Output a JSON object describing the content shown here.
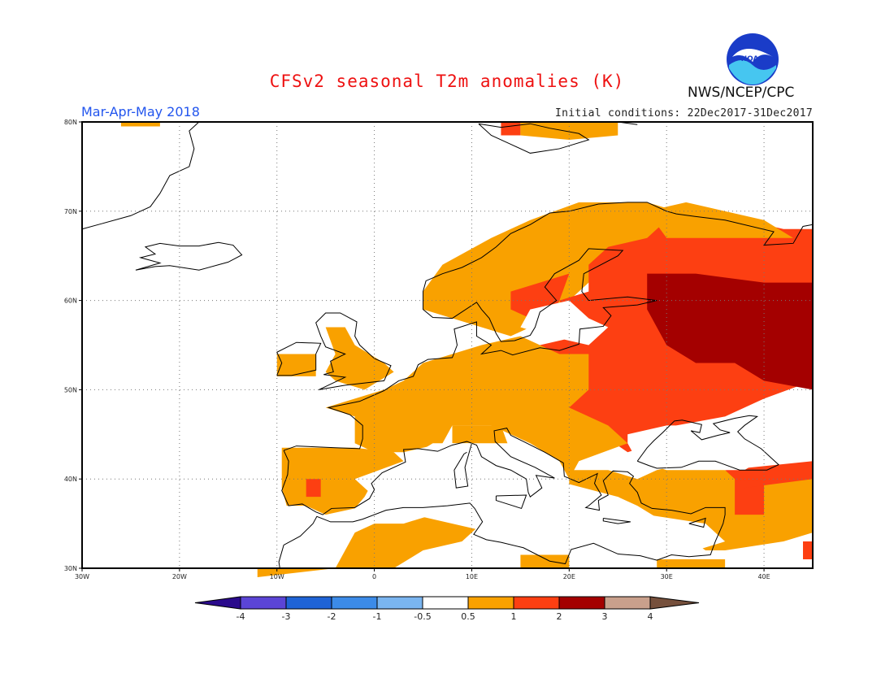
{
  "title": "CFSv2 seasonal T2m anomalies (K)",
  "agency": "NWS/NCEP/CPC",
  "logo_text": "NOAA",
  "period": "Mar-Apr-May 2018",
  "initial_conditions": "Initial conditions: 22Dec2017-31Dec2017",
  "map": {
    "projection": "lat-lon",
    "lon_range": [
      -30,
      45
    ],
    "lat_range": [
      30,
      80
    ],
    "grid": true,
    "lon_ticks": [
      {
        "value": -30,
        "label": "30W"
      },
      {
        "value": -20,
        "label": "20W"
      },
      {
        "value": -10,
        "label": "10W"
      },
      {
        "value": 0,
        "label": "0"
      },
      {
        "value": 10,
        "label": "10E"
      },
      {
        "value": 20,
        "label": "20E"
      },
      {
        "value": 30,
        "label": "30E"
      },
      {
        "value": 40,
        "label": "40E"
      }
    ],
    "lat_ticks": [
      {
        "value": 30,
        "label": "30N"
      },
      {
        "value": 40,
        "label": "40N"
      },
      {
        "value": 50,
        "label": "50N"
      },
      {
        "value": 60,
        "label": "60N"
      },
      {
        "value": 70,
        "label": "70N"
      },
      {
        "value": 80,
        "label": "80N"
      }
    ]
  },
  "colorbar": {
    "labels": [
      "-4",
      "-3",
      "-2",
      "-1",
      "-0.5",
      "0.5",
      "1",
      "2",
      "3",
      "4"
    ],
    "colors": [
      "#2a0a8c",
      "#5b45d6",
      "#1f63d6",
      "#3c8be8",
      "#7ab5f0",
      "#ffffff",
      "#f9a100",
      "#fd3f12",
      "#a40000",
      "#c9a08c",
      "#76503c"
    ]
  },
  "anomaly_classes": {
    "neutral": "#ffffff",
    "warm_05_1": "#f9a100",
    "warm_1_2": "#fd3f12",
    "warm_2_3": "#a40000"
  }
}
